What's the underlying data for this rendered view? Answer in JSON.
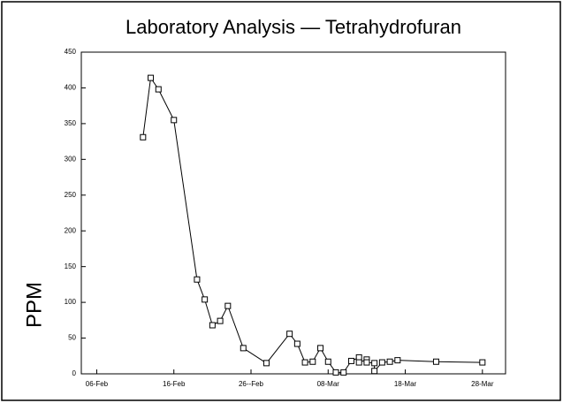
{
  "chart_data": {
    "type": "line",
    "title": "Laboratory  Analysis — Tetrahydrofuran",
    "y_label": "PPM",
    "x": [
      "12-Feb",
      "13-Feb",
      "14-Feb",
      "16-Feb",
      "19-Feb",
      "20-Feb",
      "21-Feb",
      "22-Feb",
      "23-Feb",
      "25-Feb",
      "28-Feb",
      "03-Mar",
      "04-Mar",
      "05-Mar",
      "06-Mar",
      "07-Mar",
      "08-Mar",
      "09-Mar",
      "10-Mar",
      "11-Mar",
      "12-Mar",
      "12-Mar",
      "13-Mar",
      "13-Mar",
      "14-Mar",
      "14-Mar",
      "15-Mar",
      "16-Mar",
      "17-Mar",
      "22-Mar",
      "28-Mar"
    ],
    "series": [
      {
        "name": "Tetrahydrofuran",
        "color": "#000000",
        "values": [
          331,
          414,
          398,
          355,
          132,
          104,
          68,
          74,
          95,
          36,
          15,
          56,
          42,
          16,
          17,
          36,
          17,
          2,
          2,
          18,
          23,
          16,
          20,
          16,
          15,
          4,
          16,
          17,
          19,
          17,
          16
        ]
      }
    ],
    "xlim": [
      "04-Feb",
      "31-Mar"
    ],
    "xticks": [
      "06-Feb",
      "16-Feb",
      "26--Feb",
      "08-Mar",
      "18-Mar",
      "28-Mar"
    ],
    "ylim": [
      0,
      450
    ],
    "yticks": [
      0,
      50,
      100,
      150,
      200,
      250,
      300,
      350,
      400,
      450
    ],
    "marker": "square"
  }
}
